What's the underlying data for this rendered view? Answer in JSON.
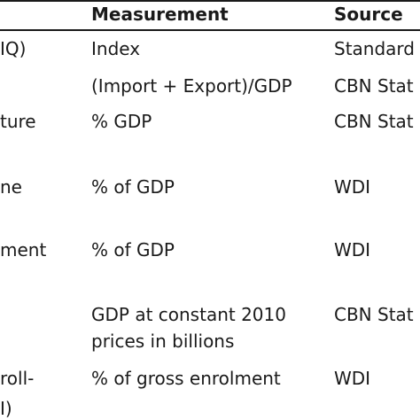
{
  "table": {
    "headers": {
      "measurement": "Measurement",
      "source": "Source"
    },
    "rows": [
      {
        "variable": "IQ)",
        "measurement": "Index",
        "source": "Standard"
      },
      {
        "variable": "",
        "measurement": "(Import + Export)/GDP",
        "source": "CBN Stat"
      },
      {
        "variable": "ture",
        "measurement": "% GDP",
        "source": "CBN Stat"
      },
      {
        "variable": "ne",
        "measurement": "% of GDP",
        "source": "WDI"
      },
      {
        "variable": "ment",
        "measurement": "% of GDP",
        "source": "WDI"
      },
      {
        "variable": "",
        "measurement": "GDP at constant 2010",
        "measurement_line2": "prices in billions",
        "source": "CBN Stat"
      },
      {
        "variable": "roll-",
        "variable_line2": "I)",
        "measurement": "% of gross enrolment",
        "source": "WDI"
      }
    ]
  }
}
